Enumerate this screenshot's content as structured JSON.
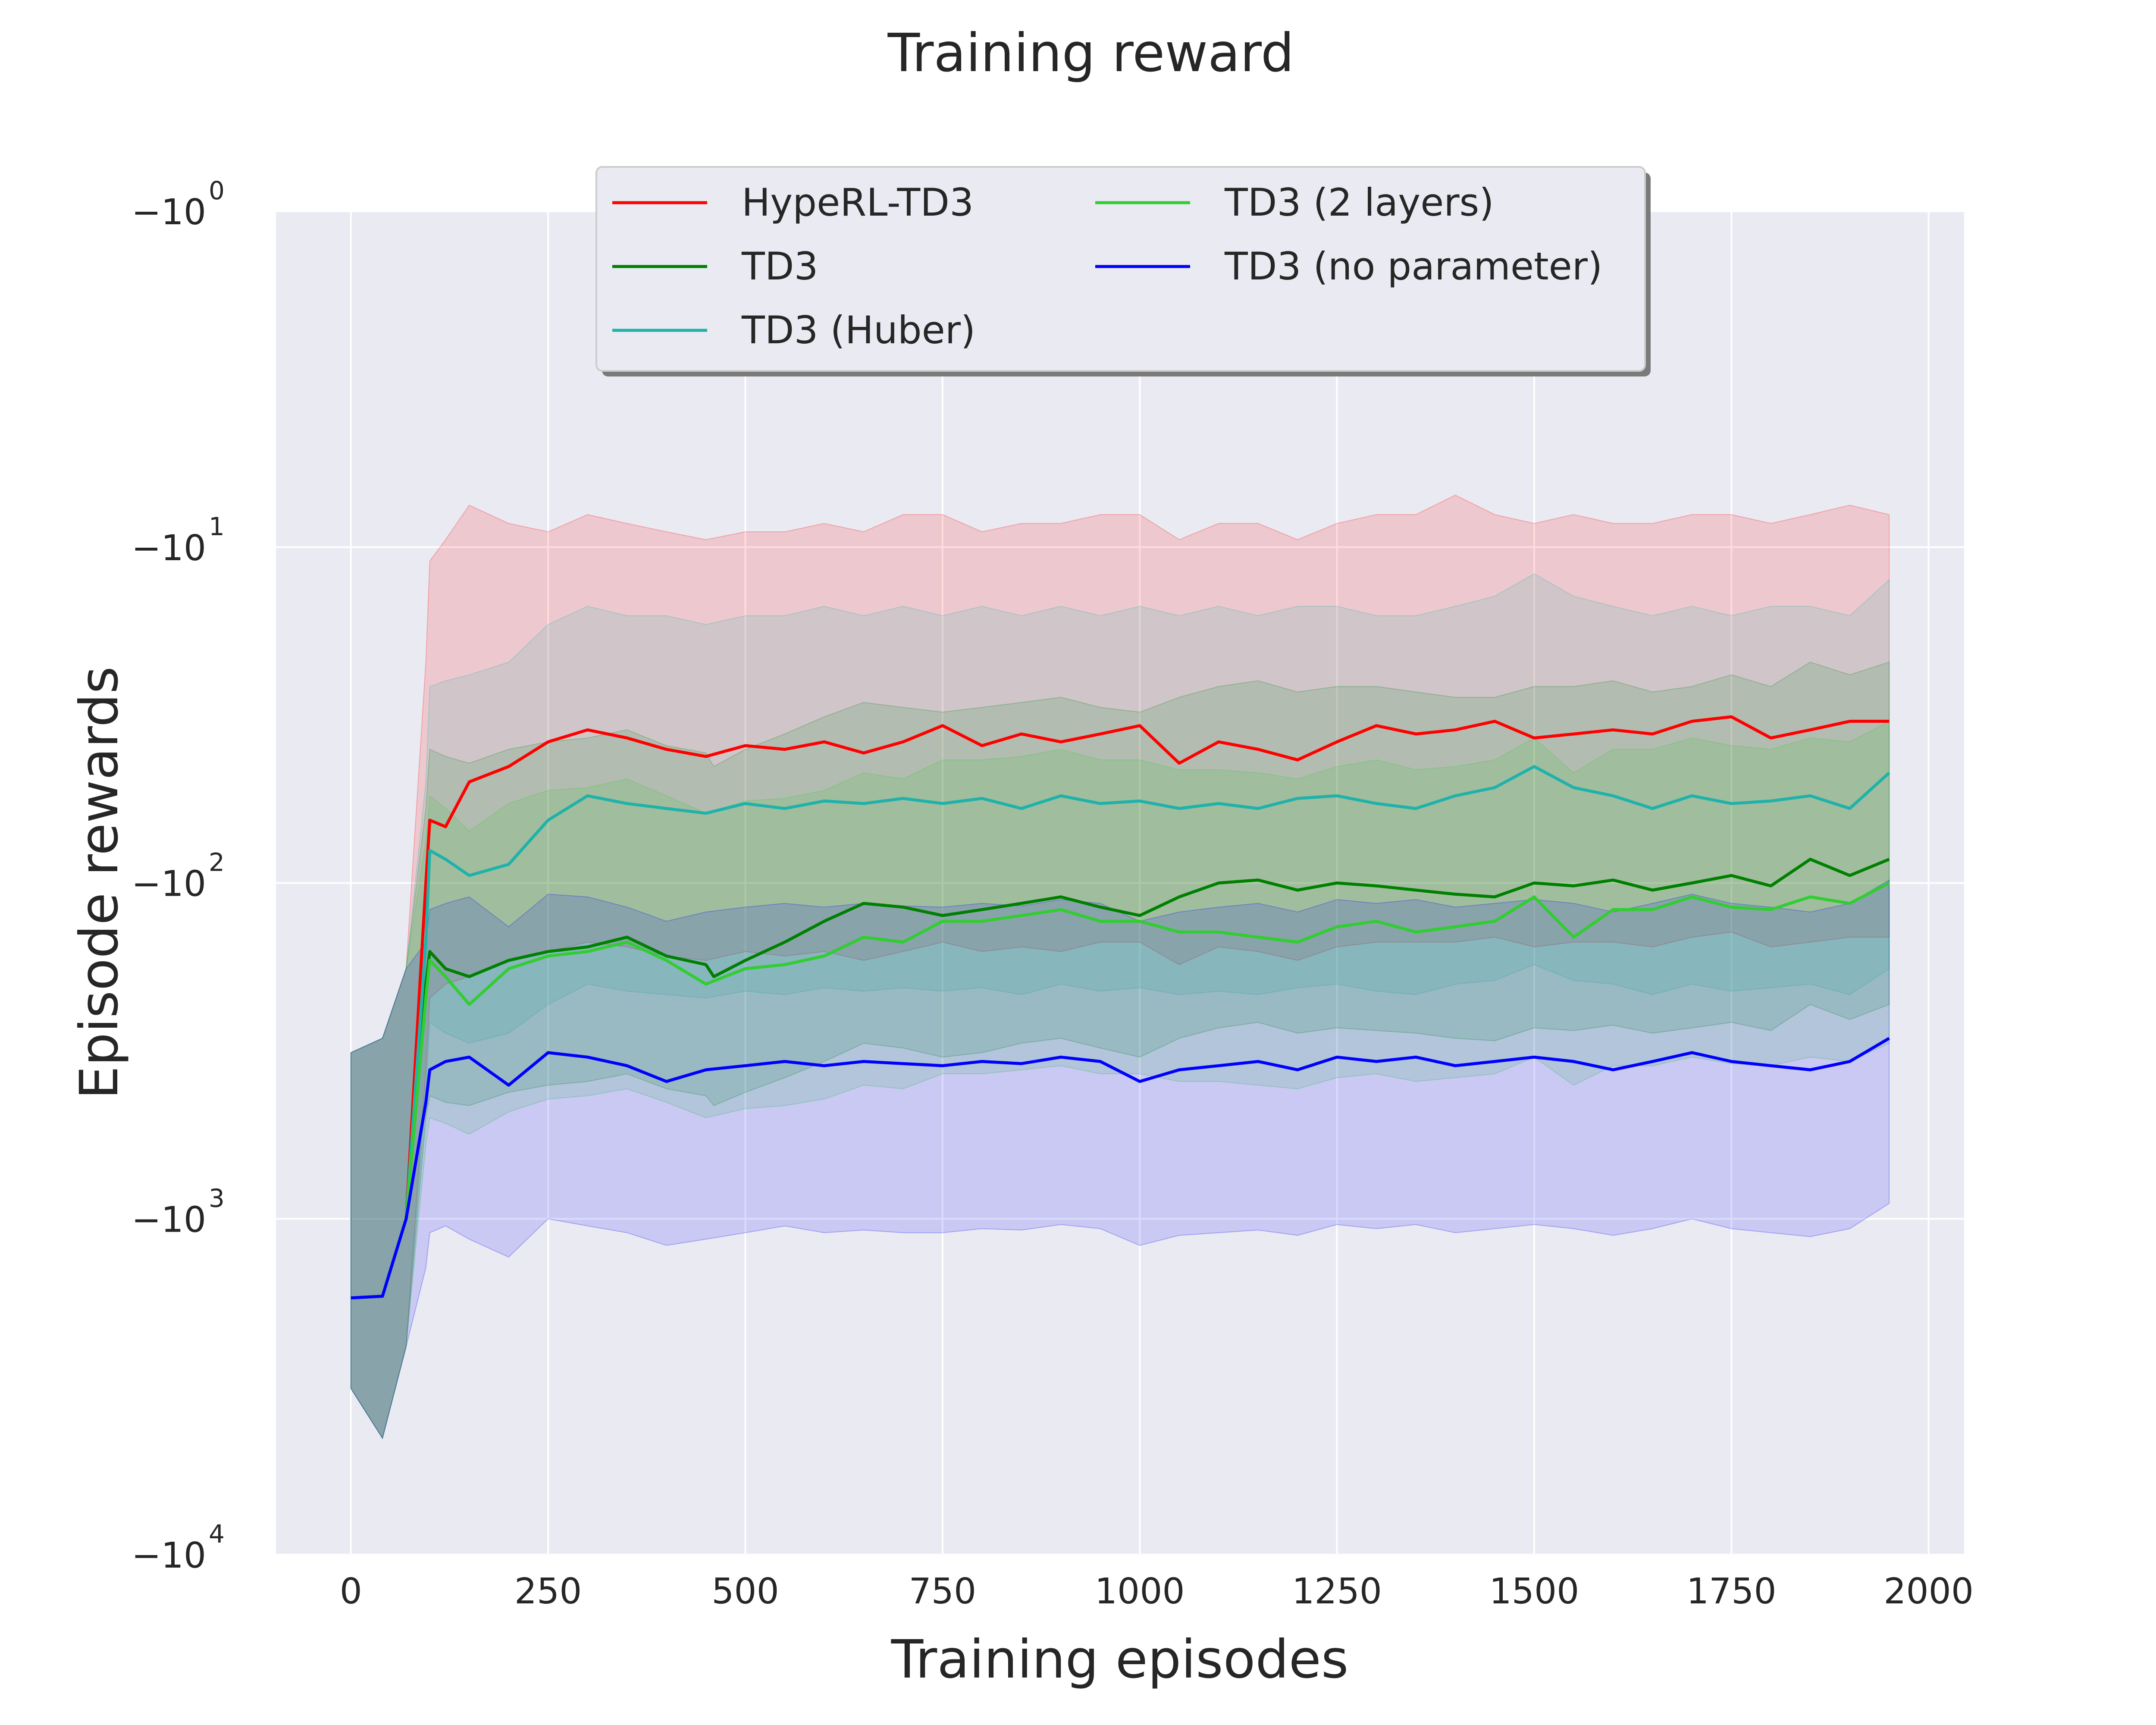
{
  "chart_data": {
    "type": "line",
    "title": "Training reward",
    "xlabel": "Training episodes",
    "ylabel": "Episode rewards",
    "xlim": [
      -95,
      2045
    ],
    "ylim": [
      -10000,
      -1
    ],
    "yscale": "symlog-negative",
    "xticks": [
      0,
      250,
      500,
      750,
      1000,
      1250,
      1500,
      1750,
      2000
    ],
    "yticks": [
      {
        "value": -1,
        "base": "−10",
        "exp": "0"
      },
      {
        "value": -10,
        "base": "−10",
        "exp": "1"
      },
      {
        "value": -100,
        "base": "−10",
        "exp": "2"
      },
      {
        "value": -1000,
        "base": "−10",
        "exp": "3"
      },
      {
        "value": -10000,
        "base": "−10",
        "exp": "4"
      }
    ],
    "grid": true,
    "legend_position": "top-center",
    "legend_columns": 2,
    "series": [
      {
        "name": "HypeRL-TD3",
        "color": "#ff0000",
        "z": 1,
        "x": [
          0,
          40,
          70,
          95,
          100,
          120,
          150,
          200,
          250,
          300,
          350,
          400,
          450,
          500,
          550,
          600,
          650,
          700,
          750,
          800,
          850,
          900,
          950,
          1000,
          1050,
          1100,
          1150,
          1200,
          1250,
          1300,
          1350,
          1400,
          1450,
          1500,
          1550,
          1600,
          1650,
          1700,
          1750,
          1800,
          1850,
          1900,
          1950
        ],
        "values": [
          -1720,
          -1700,
          -1000,
          -100,
          -65,
          -68,
          -50,
          -45,
          -38,
          -35,
          -37,
          -40,
          -42,
          -39,
          -40,
          -38,
          -41,
          -38,
          -34,
          -39,
          -36,
          -38,
          -36,
          -34,
          -44,
          -38,
          -40,
          -43,
          -38,
          -34,
          -36,
          -35,
          -33,
          -37,
          -36,
          -35,
          -36,
          -33,
          -32,
          -37,
          -35,
          -33,
          -33
        ],
        "lower": [
          -3200,
          -4500,
          -2400,
          -360,
          -220,
          -200,
          -190,
          -170,
          -160,
          -150,
          -155,
          -165,
          -170,
          -160,
          -165,
          -160,
          -170,
          -160,
          -150,
          -160,
          -155,
          -160,
          -150,
          -150,
          -175,
          -155,
          -160,
          -170,
          -155,
          -150,
          -150,
          -150,
          -145,
          -155,
          -150,
          -150,
          -155,
          -145,
          -140,
          -155,
          -150,
          -145,
          -145
        ],
        "upper": [
          -320,
          -290,
          -180,
          -22,
          -11,
          -9.5,
          -7.5,
          -8.5,
          -9,
          -8,
          -8.5,
          -9,
          -9.5,
          -9,
          -9,
          -8.5,
          -9,
          -8,
          -8,
          -9,
          -8.5,
          -8.5,
          -8,
          -8,
          -9.5,
          -8.5,
          -8.5,
          -9.5,
          -8.5,
          -8,
          -8,
          -7,
          -8,
          -8.5,
          -8,
          -8.5,
          -8.5,
          -8,
          -8,
          -8.5,
          -8,
          -7.5,
          -8
        ]
      },
      {
        "name": "TD3",
        "color": "#008000",
        "z": 2,
        "x": [
          0,
          40,
          70,
          95,
          100,
          120,
          150,
          200,
          250,
          300,
          350,
          400,
          450,
          460,
          500,
          550,
          600,
          650,
          700,
          750,
          800,
          850,
          900,
          950,
          1000,
          1050,
          1100,
          1150,
          1200,
          1250,
          1300,
          1350,
          1400,
          1450,
          1500,
          1550,
          1600,
          1650,
          1700,
          1750,
          1800,
          1850,
          1900,
          1950
        ],
        "values": [
          -1720,
          -1700,
          -1000,
          -200,
          -160,
          -180,
          -190,
          -170,
          -160,
          -155,
          -145,
          -165,
          -175,
          -190,
          -170,
          -150,
          -130,
          -115,
          -118,
          -125,
          -120,
          -115,
          -110,
          -118,
          -125,
          -110,
          -100,
          -98,
          -105,
          -100,
          -102,
          -105,
          -108,
          -110,
          -100,
          -102,
          -98,
          -105,
          -100,
          -95,
          -102,
          -85,
          -95,
          -85
        ],
        "lower": [
          -3200,
          -4500,
          -2400,
          -500,
          -430,
          -450,
          -460,
          -420,
          -400,
          -390,
          -370,
          -410,
          -430,
          -460,
          -420,
          -380,
          -340,
          -300,
          -310,
          -330,
          -320,
          -300,
          -290,
          -310,
          -330,
          -290,
          -270,
          -260,
          -280,
          -270,
          -275,
          -280,
          -290,
          -295,
          -270,
          -275,
          -265,
          -280,
          -270,
          -260,
          -275,
          -230,
          -255,
          -230
        ],
        "upper": [
          -320,
          -290,
          -180,
          -60,
          -40,
          -42,
          -44,
          -40,
          -38,
          -37,
          -35,
          -39,
          -41,
          -45,
          -40,
          -36,
          -32,
          -29,
          -30,
          -31,
          -30,
          -29,
          -28,
          -30,
          -31,
          -28,
          -26,
          -25,
          -27,
          -26,
          -26,
          -27,
          -28,
          -28,
          -26,
          -26,
          -25,
          -27,
          -26,
          -24,
          -26,
          -22,
          -24,
          -22
        ]
      },
      {
        "name": "TD3 (Huber)",
        "color": "#20b2aa",
        "z": 3,
        "x": [
          0,
          40,
          70,
          95,
          100,
          120,
          150,
          200,
          250,
          300,
          350,
          400,
          450,
          500,
          550,
          600,
          650,
          700,
          750,
          800,
          850,
          900,
          950,
          1000,
          1050,
          1100,
          1150,
          1200,
          1250,
          1300,
          1350,
          1400,
          1450,
          1500,
          1550,
          1600,
          1650,
          1700,
          1750,
          1800,
          1850,
          1900,
          1950
        ],
        "values": [
          -1720,
          -1700,
          -1000,
          -150,
          -80,
          -85,
          -95,
          -88,
          -65,
          -55,
          -58,
          -60,
          -62,
          -58,
          -60,
          -57,
          -58,
          -56,
          -58,
          -56,
          -60,
          -55,
          -58,
          -57,
          -60,
          -58,
          -60,
          -56,
          -55,
          -58,
          -60,
          -55,
          -52,
          -45,
          -52,
          -55,
          -60,
          -55,
          -58,
          -57,
          -55,
          -60,
          -47
        ],
        "lower": [
          -3200,
          -4500,
          -2400,
          -420,
          -260,
          -280,
          -300,
          -280,
          -230,
          -200,
          -210,
          -215,
          -220,
          -210,
          -215,
          -205,
          -210,
          -205,
          -210,
          -205,
          -215,
          -200,
          -210,
          -205,
          -215,
          -210,
          -215,
          -205,
          -200,
          -210,
          -215,
          -200,
          -195,
          -175,
          -195,
          -200,
          -215,
          -200,
          -210,
          -205,
          -200,
          -215,
          -180
        ],
        "upper": [
          -320,
          -290,
          -180,
          -50,
          -26,
          -25,
          -24,
          -22,
          -17,
          -15,
          -16,
          -16,
          -17,
          -16,
          -16,
          -15,
          -16,
          -15,
          -16,
          -15,
          -16,
          -15,
          -16,
          -15,
          -16,
          -15,
          -16,
          -15,
          -15,
          -16,
          -16,
          -15,
          -14,
          -12,
          -14,
          -15,
          -16,
          -15,
          -16,
          -15,
          -15,
          -16,
          -12.5
        ]
      },
      {
        "name": "TD3 (2 layers)",
        "color": "#32cd32",
        "z": 4,
        "x": [
          0,
          40,
          70,
          95,
          100,
          120,
          150,
          200,
          250,
          300,
          350,
          400,
          450,
          500,
          550,
          600,
          650,
          700,
          750,
          800,
          850,
          900,
          950,
          1000,
          1050,
          1100,
          1150,
          1200,
          1250,
          1300,
          1350,
          1400,
          1450,
          1500,
          1550,
          1600,
          1650,
          1700,
          1750,
          1800,
          1850,
          1900,
          1950
        ],
        "values": [
          -1720,
          -1700,
          -1000,
          -220,
          -170,
          -190,
          -230,
          -180,
          -165,
          -160,
          -150,
          -170,
          -200,
          -180,
          -175,
          -165,
          -145,
          -150,
          -130,
          -130,
          -125,
          -120,
          -130,
          -130,
          -140,
          -140,
          -145,
          -150,
          -135,
          -130,
          -140,
          -135,
          -130,
          -110,
          -145,
          -120,
          -120,
          -110,
          -118,
          -120,
          -110,
          -115,
          -100
        ],
        "lower": [
          -3200,
          -4500,
          -2400,
          -600,
          -500,
          -520,
          -560,
          -480,
          -440,
          -430,
          -410,
          -450,
          -500,
          -470,
          -460,
          -440,
          -400,
          -410,
          -370,
          -370,
          -360,
          -350,
          -370,
          -370,
          -390,
          -390,
          -400,
          -410,
          -380,
          -370,
          -390,
          -380,
          -370,
          -330,
          -400,
          -350,
          -350,
          -330,
          -345,
          -350,
          -330,
          -340,
          -300
        ],
        "upper": [
          -320,
          -290,
          -180,
          -75,
          -55,
          -60,
          -70,
          -58,
          -53,
          -52,
          -49,
          -55,
          -62,
          -57,
          -56,
          -53,
          -47,
          -49,
          -43,
          -43,
          -42,
          -40,
          -43,
          -43,
          -46,
          -46,
          -47,
          -49,
          -45,
          -43,
          -46,
          -45,
          -43,
          -37,
          -47,
          -40,
          -40,
          -37,
          -39,
          -40,
          -37,
          -38,
          -33
        ]
      },
      {
        "name": "TD3 (no parameter)",
        "color": "#0000ff",
        "z": 5,
        "x": [
          0,
          40,
          70,
          95,
          100,
          120,
          150,
          200,
          250,
          300,
          350,
          400,
          450,
          500,
          550,
          600,
          650,
          700,
          750,
          800,
          850,
          900,
          950,
          1000,
          1050,
          1100,
          1150,
          1200,
          1250,
          1300,
          1350,
          1400,
          1450,
          1500,
          1550,
          1600,
          1650,
          1700,
          1750,
          1800,
          1850,
          1900,
          1950
        ],
        "values": [
          -1720,
          -1700,
          -1000,
          -450,
          -360,
          -340,
          -330,
          -400,
          -320,
          -330,
          -350,
          -390,
          -360,
          -350,
          -340,
          -350,
          -340,
          -345,
          -350,
          -340,
          -345,
          -330,
          -340,
          -390,
          -360,
          -350,
          -340,
          -360,
          -330,
          -340,
          -330,
          -350,
          -340,
          -330,
          -340,
          -360,
          -340,
          -320,
          -340,
          -350,
          -360,
          -340,
          -290
        ],
        "lower": [
          -3200,
          -4500,
          -2400,
          -1400,
          -1100,
          -1050,
          -1150,
          -1300,
          -1000,
          -1050,
          -1100,
          -1200,
          -1150,
          -1100,
          -1050,
          -1100,
          -1080,
          -1100,
          -1100,
          -1070,
          -1080,
          -1040,
          -1070,
          -1200,
          -1120,
          -1100,
          -1080,
          -1120,
          -1040,
          -1070,
          -1040,
          -1100,
          -1070,
          -1040,
          -1070,
          -1120,
          -1070,
          -1000,
          -1070,
          -1100,
          -1130,
          -1070,
          -900
        ],
        "upper": [
          -320,
          -290,
          -180,
          -150,
          -120,
          -115,
          -110,
          -135,
          -108,
          -110,
          -118,
          -130,
          -122,
          -118,
          -115,
          -118,
          -115,
          -117,
          -118,
          -115,
          -117,
          -112,
          -115,
          -130,
          -122,
          -118,
          -115,
          -122,
          -112,
          -115,
          -112,
          -118,
          -115,
          -112,
          -115,
          -122,
          -115,
          -108,
          -115,
          -118,
          -122,
          -115,
          -98
        ]
      }
    ]
  }
}
